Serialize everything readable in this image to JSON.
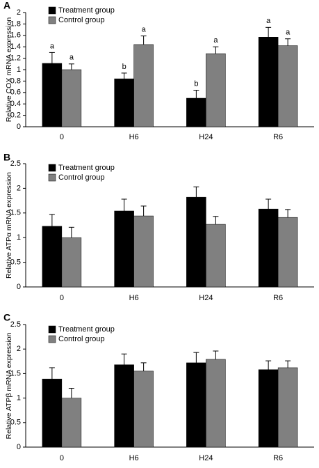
{
  "chart_data": [
    {
      "type": "bar",
      "panel_label": "A",
      "ylabel": "Relative COX mRNA expression",
      "categories": [
        "0",
        "H6",
        "H24",
        "R6"
      ],
      "series": [
        {
          "name": "Treatment group",
          "color": "#000000",
          "values": [
            1.11,
            0.84,
            0.5,
            1.57
          ],
          "errors": [
            0.19,
            0.1,
            0.14,
            0.17
          ],
          "letters": [
            "a",
            "b",
            "b",
            "a"
          ]
        },
        {
          "name": "Control group",
          "color": "#808080",
          "values": [
            1.0,
            1.44,
            1.28,
            1.42
          ],
          "errors": [
            0.1,
            0.15,
            0.12,
            0.12
          ],
          "letters": [
            "a",
            "a",
            "a",
            "a"
          ]
        }
      ],
      "ylim": [
        0,
        2
      ],
      "yticks": [
        0,
        0.2,
        0.4,
        0.6,
        0.8,
        1,
        1.2,
        1.4,
        1.6,
        1.8,
        2
      ],
      "grid": false,
      "legend": "top-left"
    },
    {
      "type": "bar",
      "panel_label": "B",
      "ylabel": "Relative ATPα mRNA expression",
      "categories": [
        "0",
        "H6",
        "H24",
        "R6"
      ],
      "series": [
        {
          "name": "Treatment group",
          "color": "#000000",
          "values": [
            1.23,
            1.54,
            1.82,
            1.58
          ],
          "errors": [
            0.24,
            0.24,
            0.21,
            0.2
          ]
        },
        {
          "name": "Control group",
          "color": "#808080",
          "values": [
            1.0,
            1.44,
            1.27,
            1.41
          ],
          "errors": [
            0.21,
            0.2,
            0.16,
            0.16
          ]
        }
      ],
      "ylim": [
        0,
        2.5
      ],
      "yticks": [
        0,
        0.5,
        1,
        1.5,
        2,
        2.5
      ],
      "grid": false,
      "legend": "top-left"
    },
    {
      "type": "bar",
      "panel_label": "C",
      "ylabel": "Relative ATPβ mRNA expression",
      "categories": [
        "0",
        "H6",
        "H24",
        "R6"
      ],
      "series": [
        {
          "name": "Treatment group",
          "color": "#000000",
          "values": [
            1.39,
            1.68,
            1.72,
            1.58
          ],
          "errors": [
            0.23,
            0.22,
            0.21,
            0.18
          ]
        },
        {
          "name": "Control group",
          "color": "#808080",
          "values": [
            1.0,
            1.55,
            1.79,
            1.62
          ],
          "errors": [
            0.2,
            0.17,
            0.17,
            0.14
          ]
        }
      ],
      "ylim": [
        0,
        2.5
      ],
      "yticks": [
        0,
        0.5,
        1,
        1.5,
        2,
        2.5
      ],
      "grid": false,
      "legend": "top-left"
    }
  ]
}
